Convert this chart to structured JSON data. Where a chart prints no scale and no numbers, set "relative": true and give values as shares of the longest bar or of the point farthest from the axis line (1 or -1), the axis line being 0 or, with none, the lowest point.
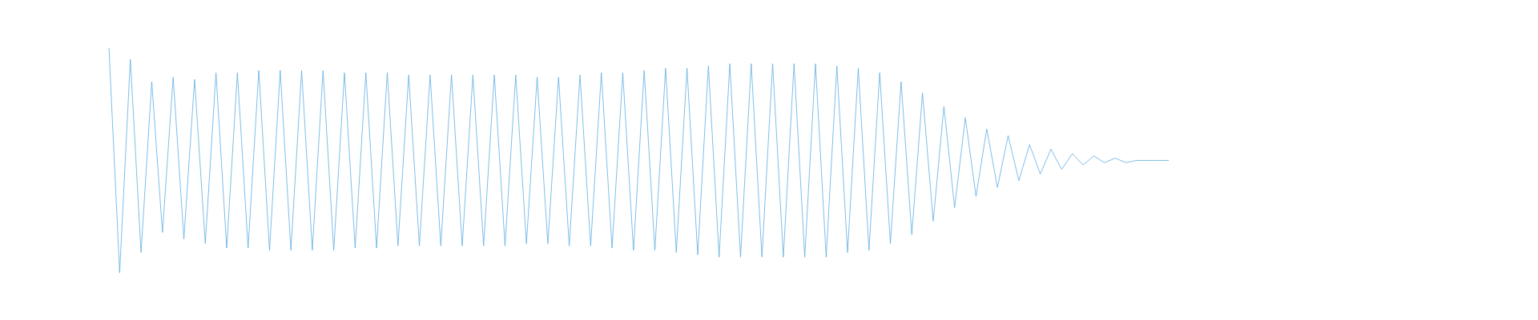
{
  "chart_data": {
    "type": "line",
    "relative": true,
    "categories": [
      null,
      null,
      null,
      null,
      null,
      null,
      null,
      null,
      null,
      null,
      null,
      null,
      null,
      null,
      null,
      null,
      null,
      null,
      null,
      null,
      null,
      null,
      null,
      null,
      null,
      null,
      null,
      null,
      null,
      null,
      null,
      null,
      null,
      null,
      null,
      null,
      null,
      null,
      null,
      null,
      null,
      null,
      null,
      null,
      null,
      null,
      null,
      null,
      null,
      null,
      null,
      null,
      null,
      null,
      null,
      null,
      null,
      null,
      null,
      null,
      null,
      null,
      null,
      null,
      null,
      null,
      null,
      null,
      null,
      null,
      null,
      null,
      null,
      null,
      null,
      null,
      null,
      null,
      null,
      null,
      null,
      null,
      null,
      null,
      null,
      null,
      null,
      null,
      null,
      null,
      null,
      null,
      null,
      null,
      null,
      null,
      null,
      null,
      null,
      null
    ],
    "series": [
      {
        "color": "#5dade2",
        "values": [
          1,
          0,
          0.95,
          0.09,
          0.85,
          0.18,
          0.87,
          0.15,
          0.86,
          0.13,
          0.89,
          0.11,
          0.89,
          0.11,
          0.9,
          0.1,
          0.9,
          0.1,
          0.9,
          0.1,
          0.9,
          0.1,
          0.89,
          0.11,
          0.89,
          0.11,
          0.89,
          0.12,
          0.88,
          0.12,
          0.88,
          0.12,
          0.88,
          0.12,
          0.88,
          0.12,
          0.88,
          0.12,
          0.88,
          0.13,
          0.87,
          0.13,
          0.87,
          0.12,
          0.88,
          0.12,
          0.89,
          0.11,
          0.89,
          0.1,
          0.9,
          0.1,
          0.91,
          0.09,
          0.91,
          0.08,
          0.92,
          0.07,
          0.93,
          0.07,
          0.93,
          0.07,
          0.93,
          0.07,
          0.93,
          0.07,
          0.93,
          0.07,
          0.92,
          0.09,
          0.91,
          0.1,
          0.89,
          0.13,
          0.85,
          0.17,
          0.8,
          0.23,
          0.74,
          0.29,
          0.69,
          0.34,
          0.64,
          0.38,
          0.61,
          0.41,
          0.57,
          0.44,
          0.55,
          0.46,
          0.53,
          0.48,
          0.52,
          0.49,
          0.51,
          0.49,
          0.5,
          0.5,
          0.5,
          0.5
        ]
      }
    ]
  }
}
